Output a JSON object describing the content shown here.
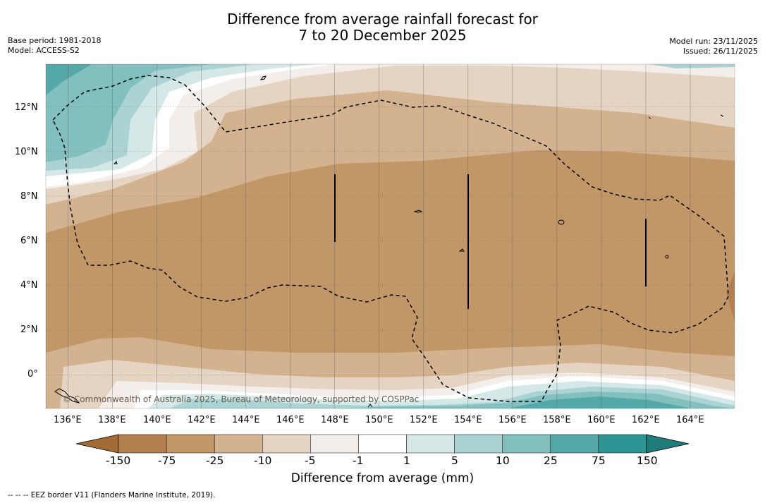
{
  "title": {
    "line1": "Difference from average rainfall forecast for",
    "line2": "7 to 20 December 2025"
  },
  "meta": {
    "base_period": "Base period: 1981-2018",
    "model": "Model: ACCESS-S2",
    "model_run": "Model run: 23/11/2025",
    "issued": "Issued: 26/11/2025"
  },
  "map": {
    "lat_labels": [
      "12°N",
      "10°N",
      "8°N",
      "6°N",
      "4°N",
      "2°N",
      "0°"
    ],
    "lon_labels": [
      "136°E",
      "138°E",
      "140°E",
      "142°E",
      "144°E",
      "146°E",
      "148°E",
      "150°E",
      "152°E",
      "154°E",
      "156°E",
      "158°E",
      "160°E",
      "162°E",
      "164°E"
    ],
    "lon_range": [
      135,
      166
    ],
    "lat_range": [
      -1.5,
      13.9
    ],
    "copyright": "© Commonwealth of Australia 2025, Bureau of Meteorology, supported by COSPPac"
  },
  "colorbar": {
    "labels": [
      "-150",
      "-75",
      "-25",
      "-10",
      "-5",
      "-1",
      "1",
      "5",
      "10",
      "25",
      "75",
      "150"
    ],
    "colors": [
      "#a36b35",
      "#b47f4f",
      "#c19768",
      "#d3b290",
      "#e6d4c3",
      "#f3eee9",
      "#ffffff",
      "#d4e8e8",
      "#abd3d3",
      "#82c0c0",
      "#55a8a8",
      "#2e9393",
      "#227b7b"
    ],
    "label": "Difference from average (mm)"
  },
  "footer": "--  --  -- EEZ border V11 (Flanders Marine Institute, 2019).",
  "chart_data": {
    "type": "heatmap",
    "title": "Difference from average rainfall forecast for 7 to 20 December 2025",
    "units": "mm",
    "x_range_deg_E": [
      135,
      166
    ],
    "y_range_deg_N": [
      -1.5,
      13.9
    ],
    "bins_mm": [
      -150,
      -75,
      -25,
      -10,
      -5,
      -1,
      1,
      5,
      10,
      25,
      75,
      150
    ],
    "dominant_category": "-75 to -25 mm (drier than average) across central band approx. 1°N–9°N",
    "wetter_regions": [
      "north-west corner near 135–138°E, 10–14°N",
      "south-east near 154–162°E, 0–1.5°S"
    ]
  }
}
